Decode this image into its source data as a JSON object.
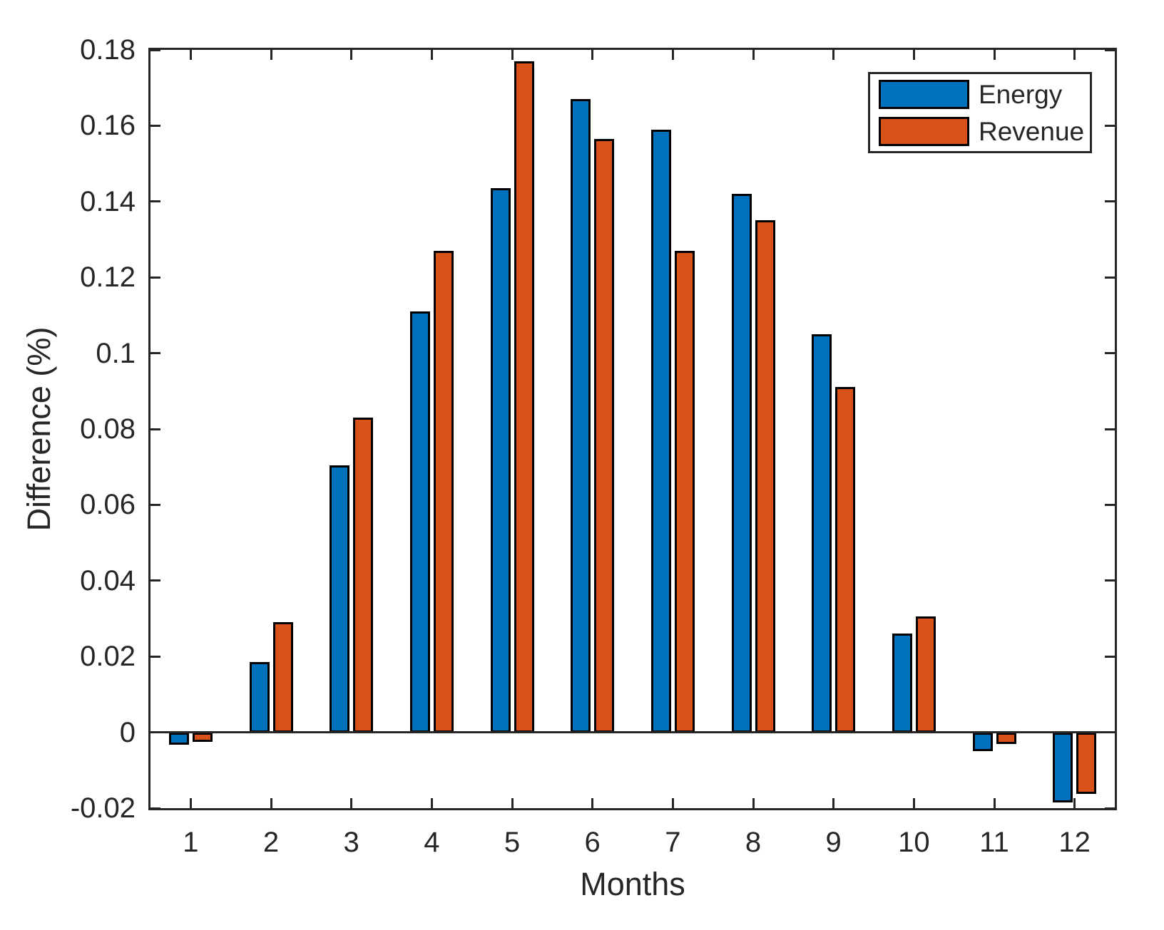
{
  "chart_data": {
    "type": "bar",
    "title": "",
    "xlabel": "Months",
    "ylabel": "Difference (%)",
    "categories": [
      "1",
      "2",
      "3",
      "4",
      "5",
      "6",
      "7",
      "8",
      "9",
      "10",
      "11",
      "12"
    ],
    "series": [
      {
        "name": "Energy",
        "color": "#0072BD",
        "values": [
          -0.0033,
          0.0185,
          0.0705,
          0.111,
          0.1435,
          0.167,
          0.159,
          0.142,
          0.105,
          0.026,
          -0.005,
          -0.0185
        ]
      },
      {
        "name": "Revenue",
        "color": "#D95319",
        "values": [
          -0.0026,
          0.029,
          0.083,
          0.127,
          0.177,
          0.1565,
          0.127,
          0.135,
          0.091,
          0.0305,
          -0.003,
          -0.0163
        ]
      }
    ],
    "ylim": [
      -0.02,
      0.18
    ],
    "ytick_step": 0.02,
    "yticks": [
      "-0.02",
      "0",
      "0.02",
      "0.04",
      "0.06",
      "0.08",
      "0.1",
      "0.12",
      "0.14",
      "0.16",
      "0.18"
    ],
    "legend_position": "top-right",
    "grid": false,
    "colors": {
      "axis": "#262626",
      "bar_edge": "#000000",
      "background": "#ffffff"
    }
  }
}
